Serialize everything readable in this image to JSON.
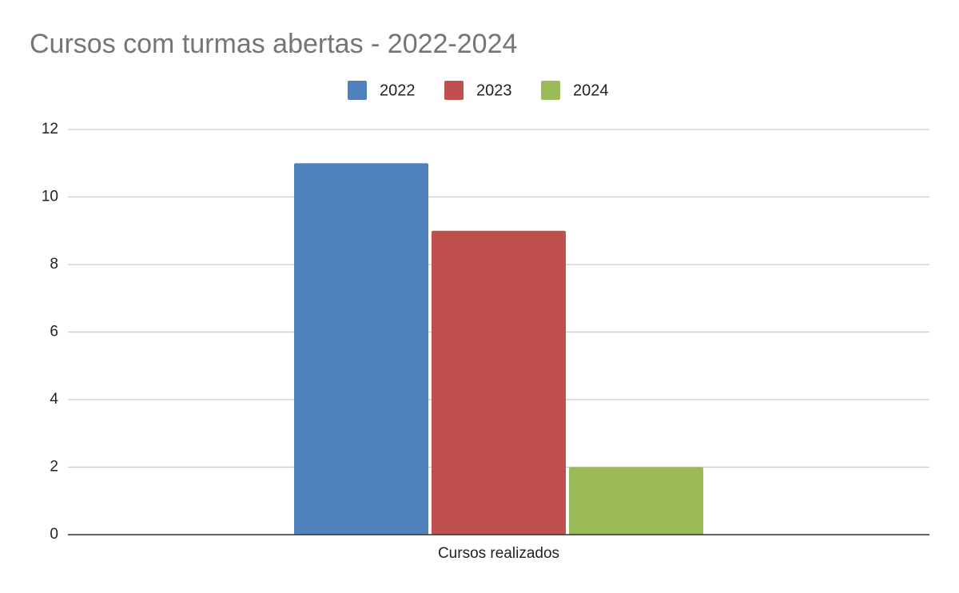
{
  "chart_data": {
    "type": "bar",
    "title": "Cursos com turmas abertas - 2022-2024",
    "categories": [
      "Cursos realizados"
    ],
    "series": [
      {
        "name": "2022",
        "color": "#4f81bd",
        "values": [
          11
        ]
      },
      {
        "name": "2023",
        "color": "#c0504d",
        "values": [
          9
        ]
      },
      {
        "name": "2024",
        "color": "#9bbb59",
        "values": [
          2
        ]
      }
    ],
    "ylim": [
      0,
      12
    ],
    "yticks": [
      0,
      2,
      4,
      6,
      8,
      10,
      12
    ],
    "grid": true,
    "legend": "top"
  }
}
